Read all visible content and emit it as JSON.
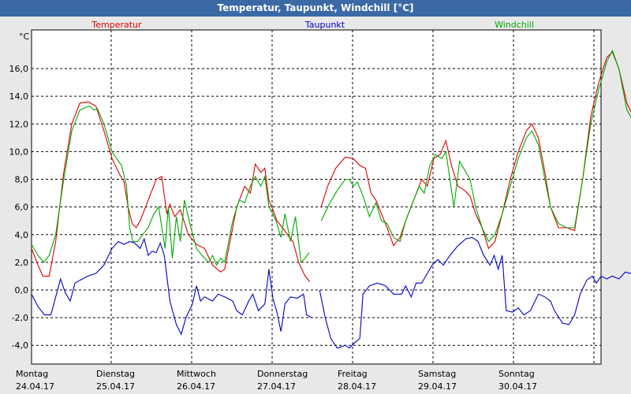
{
  "window": {
    "title": "Temperatur, Taupunkt, Windchill [°C]"
  },
  "colors": {
    "temperatur": "#DD0000",
    "taupunkt": "#0000CC",
    "windchill": "#00AA00",
    "titlebar": "#3A69A5",
    "background": "#E8E8E8",
    "plot": "#FFFFFF",
    "grid": "#000000"
  },
  "chart_data": {
    "type": "line",
    "title": "Temperatur, Taupunkt, Windchill [°C]",
    "ylabel": "°C",
    "ylim": [
      -5.0,
      18.0
    ],
    "xlim": [
      0,
      7
    ],
    "yticks": [
      "16,0",
      "14,0",
      "12,0",
      "10,0",
      "8,0",
      "6,0",
      "4,0",
      "2,0",
      "0,0",
      "-2,0",
      "-4,0"
    ],
    "ytick_values": [
      16,
      14,
      12,
      10,
      8,
      6,
      4,
      2,
      0,
      -2,
      -4
    ],
    "x_days": [
      {
        "day": "Montag",
        "date": "24.04.17"
      },
      {
        "day": "Dienstag",
        "date": "25.04.17"
      },
      {
        "day": "Mittwoch",
        "date": "26.04.17"
      },
      {
        "day": "Donnerstag",
        "date": "27.04.17"
      },
      {
        "day": "Freitag",
        "date": "28.04.17"
      },
      {
        "day": "Samstag",
        "date": "29.04.17"
      },
      {
        "day": "Sonntag",
        "date": "30.04.17"
      }
    ],
    "grid": true,
    "legend": "top",
    "series": [
      {
        "name": "Temperatur",
        "color": "#DD0000",
        "points": [
          [
            0.0,
            3.0
          ],
          [
            0.08,
            1.8
          ],
          [
            0.14,
            1.0
          ],
          [
            0.22,
            1.0
          ],
          [
            0.3,
            3.5
          ],
          [
            0.4,
            8.5
          ],
          [
            0.5,
            12.0
          ],
          [
            0.6,
            13.5
          ],
          [
            0.7,
            13.6
          ],
          [
            0.8,
            13.3
          ],
          [
            0.9,
            11.5
          ],
          [
            1.0,
            9.5
          ],
          [
            1.1,
            8.3
          ],
          [
            1.15,
            7.8
          ],
          [
            1.2,
            6.0
          ],
          [
            1.25,
            4.8
          ],
          [
            1.3,
            4.5
          ],
          [
            1.35,
            5.0
          ],
          [
            1.45,
            6.5
          ],
          [
            1.55,
            8.0
          ],
          [
            1.62,
            8.2
          ],
          [
            1.68,
            5.5
          ],
          [
            1.72,
            6.2
          ],
          [
            1.78,
            5.3
          ],
          [
            1.85,
            5.8
          ],
          [
            1.95,
            4.0
          ],
          [
            2.05,
            3.3
          ],
          [
            2.15,
            3.0
          ],
          [
            2.25,
            1.8
          ],
          [
            2.35,
            1.3
          ],
          [
            2.4,
            1.5
          ],
          [
            2.45,
            3.0
          ],
          [
            2.55,
            6.0
          ],
          [
            2.65,
            7.5
          ],
          [
            2.72,
            7.0
          ],
          [
            2.78,
            9.1
          ],
          [
            2.85,
            8.5
          ],
          [
            2.9,
            8.8
          ],
          [
            2.95,
            6.5
          ],
          [
            3.0,
            5.8
          ],
          [
            3.05,
            5.0
          ],
          [
            3.12,
            4.5
          ],
          [
            3.18,
            4.0
          ],
          [
            3.25,
            3.5
          ],
          [
            3.32,
            2.0
          ],
          [
            3.4,
            1.0
          ],
          [
            3.46,
            0.6
          ],
          null,
          [
            3.6,
            6.0
          ],
          [
            3.68,
            7.5
          ],
          [
            3.78,
            8.8
          ],
          [
            3.9,
            9.6
          ],
          [
            4.0,
            9.5
          ],
          [
            4.08,
            9.0
          ],
          [
            4.15,
            8.8
          ],
          [
            4.22,
            7.0
          ],
          [
            4.28,
            6.5
          ],
          [
            4.35,
            5.5
          ],
          [
            4.42,
            4.5
          ],
          [
            4.5,
            3.2
          ],
          [
            4.58,
            3.8
          ],
          [
            4.65,
            5.0
          ],
          [
            4.75,
            6.5
          ],
          [
            4.85,
            8.0
          ],
          [
            4.92,
            7.5
          ],
          [
            5.0,
            9.5
          ],
          [
            5.08,
            9.8
          ],
          [
            5.15,
            10.8
          ],
          [
            5.22,
            9.0
          ],
          [
            5.3,
            7.5
          ],
          [
            5.38,
            7.2
          ],
          [
            5.45,
            6.8
          ],
          [
            5.52,
            5.5
          ],
          [
            5.6,
            4.5
          ],
          [
            5.68,
            3.0
          ],
          [
            5.76,
            3.5
          ],
          [
            5.85,
            5.5
          ],
          [
            5.95,
            8.0
          ],
          [
            6.05,
            10.0
          ],
          [
            6.15,
            11.5
          ],
          [
            6.22,
            12.0
          ],
          [
            6.3,
            11.0
          ],
          [
            6.38,
            8.5
          ],
          [
            6.45,
            6.0
          ],
          [
            6.55,
            4.5
          ],
          [
            6.65,
            4.5
          ],
          [
            6.75,
            4.3
          ],
          [
            6.85,
            8.0
          ],
          [
            6.95,
            12.5
          ],
          [
            7.05,
            15.0
          ],
          [
            7.15,
            16.8
          ],
          [
            7.22,
            17.2
          ],
          [
            7.3,
            16.0
          ],
          [
            7.4,
            13.5
          ],
          [
            7.48,
            12.5
          ]
        ]
      },
      {
        "name": "Taupunkt",
        "color": "#0000CC",
        "points": [
          [
            0.0,
            -0.3
          ],
          [
            0.08,
            -1.2
          ],
          [
            0.16,
            -1.8
          ],
          [
            0.24,
            -1.8
          ],
          [
            0.3,
            -0.5
          ],
          [
            0.36,
            0.8
          ],
          [
            0.42,
            -0.2
          ],
          [
            0.48,
            -0.8
          ],
          [
            0.54,
            0.5
          ],
          [
            0.6,
            0.7
          ],
          [
            0.7,
            1.0
          ],
          [
            0.8,
            1.2
          ],
          [
            0.9,
            1.8
          ],
          [
            1.0,
            3.0
          ],
          [
            1.08,
            3.5
          ],
          [
            1.15,
            3.3
          ],
          [
            1.22,
            3.5
          ],
          [
            1.28,
            3.4
          ],
          [
            1.35,
            3.0
          ],
          [
            1.4,
            3.7
          ],
          [
            1.45,
            2.5
          ],
          [
            1.5,
            2.8
          ],
          [
            1.55,
            2.7
          ],
          [
            1.6,
            3.4
          ],
          [
            1.65,
            2.5
          ],
          [
            1.72,
            -0.8
          ],
          [
            1.8,
            -2.5
          ],
          [
            1.86,
            -3.2
          ],
          [
            1.92,
            -2.0
          ],
          [
            2.0,
            -1.0
          ],
          [
            2.05,
            0.3
          ],
          [
            2.1,
            -0.8
          ],
          [
            2.15,
            -0.5
          ],
          [
            2.25,
            -0.8
          ],
          [
            2.32,
            -0.3
          ],
          [
            2.4,
            -0.5
          ],
          [
            2.5,
            -0.8
          ],
          [
            2.55,
            -1.5
          ],
          [
            2.62,
            -1.8
          ],
          [
            2.7,
            -0.8
          ],
          [
            2.75,
            -0.3
          ],
          [
            2.82,
            -1.5
          ],
          [
            2.9,
            -1.0
          ],
          [
            2.95,
            1.5
          ],
          [
            3.0,
            -0.6
          ],
          [
            3.05,
            -1.6
          ],
          [
            3.1,
            -3.0
          ],
          [
            3.15,
            -1.0
          ],
          [
            3.22,
            -0.5
          ],
          [
            3.3,
            -0.6
          ],
          [
            3.38,
            -0.3
          ],
          [
            3.42,
            -1.8
          ],
          [
            3.48,
            -2.0
          ],
          null,
          [
            3.58,
            0.0
          ],
          [
            3.65,
            -2.0
          ],
          [
            3.72,
            -3.5
          ],
          [
            3.8,
            -4.2
          ],
          [
            3.9,
            -4.0
          ],
          [
            3.95,
            -4.2
          ],
          [
            4.02,
            -3.8
          ],
          [
            4.08,
            -3.5
          ],
          [
            4.12,
            -0.3
          ],
          [
            4.2,
            0.3
          ],
          [
            4.3,
            0.5
          ],
          [
            4.4,
            0.3
          ],
          [
            4.5,
            -0.3
          ],
          [
            4.6,
            -0.3
          ],
          [
            4.65,
            0.3
          ],
          [
            4.72,
            -0.5
          ],
          [
            4.78,
            0.5
          ],
          [
            4.85,
            0.5
          ],
          [
            4.9,
            1.0
          ],
          [
            4.98,
            1.8
          ],
          [
            5.05,
            2.2
          ],
          [
            5.12,
            1.8
          ],
          [
            5.2,
            2.5
          ],
          [
            5.3,
            3.2
          ],
          [
            5.4,
            3.7
          ],
          [
            5.48,
            3.8
          ],
          [
            5.55,
            3.5
          ],
          [
            5.62,
            2.5
          ],
          [
            5.7,
            1.8
          ],
          [
            5.75,
            2.5
          ],
          [
            5.8,
            1.5
          ],
          [
            5.85,
            2.5
          ],
          [
            5.9,
            -1.5
          ],
          [
            5.98,
            -1.6
          ],
          [
            6.05,
            -1.3
          ],
          [
            6.12,
            -1.8
          ],
          [
            6.2,
            -1.5
          ],
          [
            6.3,
            -0.3
          ],
          [
            6.38,
            -0.5
          ],
          [
            6.45,
            -0.8
          ],
          [
            6.5,
            -1.5
          ],
          [
            6.6,
            -2.4
          ],
          [
            6.68,
            -2.5
          ],
          [
            6.75,
            -1.8
          ],
          [
            6.82,
            -0.3
          ],
          [
            6.9,
            0.7
          ],
          [
            6.97,
            1.0
          ],
          [
            7.02,
            0.5
          ],
          [
            7.08,
            1.0
          ],
          [
            7.15,
            0.8
          ],
          [
            7.22,
            1.0
          ],
          [
            7.3,
            0.8
          ],
          [
            7.38,
            1.3
          ],
          [
            7.44,
            1.2
          ],
          [
            7.48,
            1.4
          ]
        ]
      },
      {
        "name": "Windchill",
        "color": "#00AA00",
        "points": [
          [
            0.0,
            3.3
          ],
          [
            0.08,
            2.5
          ],
          [
            0.15,
            2.0
          ],
          [
            0.22,
            2.5
          ],
          [
            0.3,
            4.0
          ],
          [
            0.4,
            8.0
          ],
          [
            0.5,
            11.5
          ],
          [
            0.6,
            13.0
          ],
          [
            0.68,
            13.2
          ],
          [
            0.72,
            13.3
          ],
          [
            0.78,
            13.0
          ],
          [
            0.82,
            13.1
          ],
          [
            0.9,
            12.0
          ],
          [
            1.0,
            10.0
          ],
          [
            1.08,
            9.3
          ],
          [
            1.12,
            9.0
          ],
          [
            1.18,
            7.5
          ],
          [
            1.22,
            4.5
          ],
          [
            1.26,
            3.5
          ],
          [
            1.32,
            3.5
          ],
          [
            1.38,
            4.0
          ],
          [
            1.45,
            4.5
          ],
          [
            1.52,
            5.5
          ],
          [
            1.58,
            6.0
          ],
          [
            1.62,
            4.5
          ],
          [
            1.66,
            3.0
          ],
          [
            1.7,
            6.0
          ],
          [
            1.75,
            2.3
          ],
          [
            1.8,
            5.3
          ],
          [
            1.85,
            3.5
          ],
          [
            1.9,
            6.5
          ],
          [
            1.98,
            4.5
          ],
          [
            2.05,
            3.0
          ],
          [
            2.12,
            2.5
          ],
          [
            2.2,
            2.0
          ],
          [
            2.25,
            2.5
          ],
          [
            2.3,
            1.8
          ],
          [
            2.35,
            2.3
          ],
          [
            2.4,
            2.0
          ],
          [
            2.45,
            3.5
          ],
          [
            2.5,
            5.0
          ],
          [
            2.58,
            6.5
          ],
          [
            2.65,
            6.3
          ],
          [
            2.72,
            7.5
          ],
          [
            2.78,
            8.2
          ],
          [
            2.85,
            7.5
          ],
          [
            2.9,
            8.2
          ],
          [
            2.95,
            6.0
          ],
          [
            3.0,
            5.5
          ],
          [
            3.05,
            4.8
          ],
          [
            3.1,
            3.8
          ],
          [
            3.15,
            5.5
          ],
          [
            3.22,
            3.5
          ],
          [
            3.28,
            5.3
          ],
          [
            3.35,
            2.0
          ],
          [
            3.4,
            2.3
          ],
          [
            3.45,
            2.7
          ],
          null,
          [
            3.6,
            5.0
          ],
          [
            3.7,
            6.2
          ],
          [
            3.8,
            7.2
          ],
          [
            3.9,
            8.0
          ],
          [
            3.95,
            8.0
          ],
          [
            4.0,
            7.5
          ],
          [
            4.05,
            7.8
          ],
          [
            4.12,
            6.8
          ],
          [
            4.2,
            5.3
          ],
          [
            4.28,
            6.3
          ],
          [
            4.35,
            5.0
          ],
          [
            4.42,
            4.8
          ],
          [
            4.5,
            3.8
          ],
          [
            4.58,
            3.5
          ],
          [
            4.65,
            5.0
          ],
          [
            4.75,
            6.5
          ],
          [
            4.82,
            7.5
          ],
          [
            4.88,
            7.0
          ],
          [
            4.95,
            9.0
          ],
          [
            5.02,
            9.8
          ],
          [
            5.1,
            9.5
          ],
          [
            5.15,
            10.0
          ],
          [
            5.2,
            8.0
          ],
          [
            5.25,
            6.0
          ],
          [
            5.32,
            9.3
          ],
          [
            5.4,
            8.5
          ],
          [
            5.45,
            8.0
          ],
          [
            5.52,
            6.0
          ],
          [
            5.6,
            4.5
          ],
          [
            5.68,
            3.5
          ],
          [
            5.76,
            4.0
          ],
          [
            5.85,
            5.5
          ],
          [
            5.95,
            7.5
          ],
          [
            6.05,
            9.5
          ],
          [
            6.15,
            11.0
          ],
          [
            6.22,
            11.5
          ],
          [
            6.3,
            10.5
          ],
          [
            6.38,
            8.0
          ],
          [
            6.45,
            6.0
          ],
          [
            6.55,
            4.8
          ],
          [
            6.65,
            4.5
          ],
          [
            6.75,
            4.5
          ],
          [
            6.85,
            8.0
          ],
          [
            6.95,
            12.0
          ],
          [
            7.05,
            14.5
          ],
          [
            7.15,
            16.5
          ],
          [
            7.22,
            17.3
          ],
          [
            7.3,
            16.0
          ],
          [
            7.4,
            13.0
          ],
          [
            7.48,
            12.2
          ]
        ]
      }
    ]
  }
}
